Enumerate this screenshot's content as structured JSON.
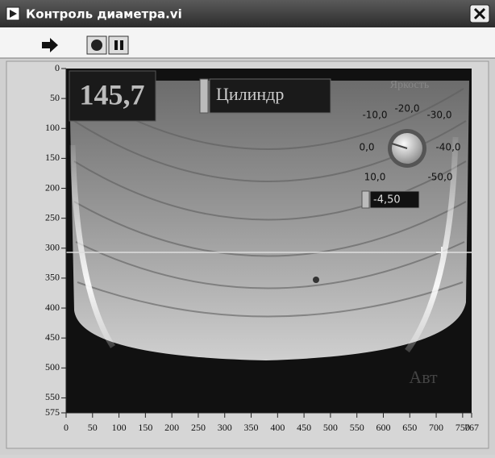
{
  "window": {
    "title": "Контроль диаметра.vi"
  },
  "display": {
    "value": "145,7",
    "mode": "Цилиндр",
    "auto": "Авт"
  },
  "knob": {
    "label": "Яркость",
    "scale": [
      "-10,0",
      "-20,0",
      "-30,0",
      "0,0",
      "-40,0",
      "10,0",
      "-50,0"
    ],
    "input": "-4,50"
  },
  "axes": {
    "yticks": [
      0,
      50,
      100,
      150,
      200,
      250,
      300,
      350,
      400,
      450,
      500,
      550,
      575
    ],
    "xticks": [
      0,
      50,
      100,
      150,
      200,
      250,
      300,
      350,
      400,
      450,
      500,
      550,
      600,
      650,
      700,
      750,
      767
    ]
  }
}
